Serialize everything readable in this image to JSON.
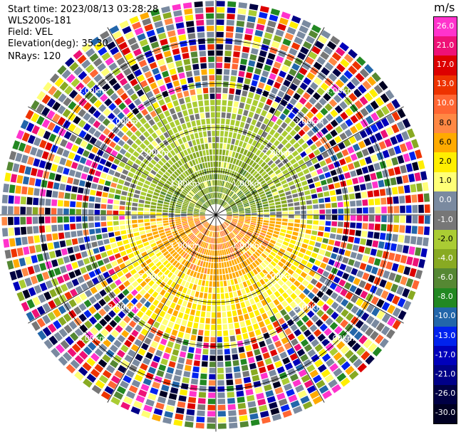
{
  "header": {
    "start_time": "Start time: 2023/08/13 03:28:28",
    "instrument": "WLS200s-181",
    "field": "Field: VEL",
    "elevation": "Elevation(deg): 35.30",
    "nrays": "NRays: 120"
  },
  "chart_data": {
    "type": "heatmap",
    "projection": "polar (PPI)",
    "field": "VEL",
    "units": "m/s",
    "n_rays": 120,
    "max_range_km": 4.8,
    "range_rings_km": [
      1.0,
      2.0,
      3.0,
      4.0
    ],
    "ring_labels": [
      "1.00km",
      "2.00km",
      "3.00km",
      "4.00km"
    ],
    "colorbar": {
      "title": "m/s",
      "ticks": [
        "26.0",
        "21.0",
        "17.0",
        "13.0",
        "10.0",
        "8.0",
        "6.0",
        "2.0",
        "1.0",
        "0.0",
        "-1.0",
        "-2.0",
        "-4.0",
        "-6.0",
        "-8.0",
        "-10.0",
        "-13.0",
        "-17.0",
        "-21.0",
        "-26.0",
        "-30.0"
      ],
      "colors": [
        "#ff33cc",
        "#ee1177",
        "#dd0000",
        "#ee3300",
        "#ff6633",
        "#ff8844",
        "#ffaa00",
        "#ffee00",
        "#ffff77",
        "#7a8aa0",
        "#777777",
        "#aacc33",
        "#88aa22",
        "#558833",
        "#228822",
        "#2266aa",
        "#0022ee",
        "#0000bb",
        "#000088",
        "#000044",
        "#000022"
      ]
    },
    "pattern": {
      "near_north_km": [
        0.4,
        2.6
      ],
      "near_north_value_ms": -6.0,
      "near_south_km": [
        0.3,
        2.0
      ],
      "near_south_value_ms": 6.0,
      "outer_km": [
        2.6,
        4.8
      ],
      "outer_value": "noise (random colors)"
    }
  }
}
